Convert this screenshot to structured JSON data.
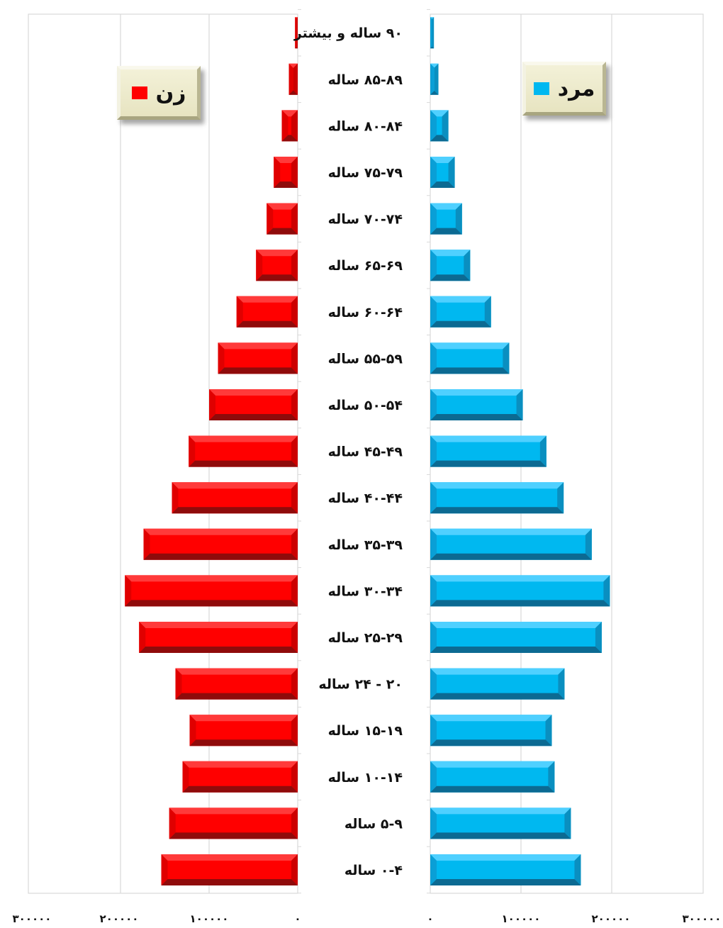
{
  "chart_data": {
    "type": "bar",
    "orientation": "horizontal",
    "style": "population-pyramid",
    "categories": [
      "۰-۴ ساله",
      "۵-۹ ساله",
      "۱۰-۱۴ ساله",
      "۱۵-۱۹ ساله",
      "۲۰ - ۲۴ ساله",
      "۲۵-۲۹ ساله",
      "۳۰-۳۴ ساله",
      "۳۵-۳۹ ساله",
      "۴۰-۴۴ ساله",
      "۴۵-۴۹ ساله",
      "۵۰-۵۴ ساله",
      "۵۵-۵۹ ساله",
      "۶۰-۶۴ ساله",
      "۶۵-۶۹ ساله",
      "۷۰-۷۴ ساله",
      "۷۵-۷۹ ساله",
      "۸۰-۸۴ ساله",
      "۸۵-۸۹ ساله",
      "۹۰ ساله و بیشتر"
    ],
    "series": [
      {
        "name": "زن",
        "side": "left",
        "color": "#ff0000",
        "values": [
          154000,
          145000,
          130000,
          122000,
          138000,
          179000,
          195000,
          174000,
          142000,
          123000,
          100000,
          90000,
          69000,
          47000,
          35000,
          27000,
          18000,
          10000,
          3000
        ]
      },
      {
        "name": "مرد",
        "side": "right",
        "color": "#00b8f0",
        "values": [
          166000,
          155000,
          137000,
          134000,
          148000,
          189000,
          198000,
          178000,
          147000,
          128000,
          102000,
          87000,
          67000,
          44000,
          35000,
          27000,
          20000,
          9000,
          4000
        ]
      }
    ],
    "xlim": [
      0,
      300000
    ],
    "left_ticks": [
      "۳۰۰۰۰۰",
      "۲۰۰۰۰۰",
      "۱۰۰۰۰۰",
      "۰"
    ],
    "right_ticks": [
      "۰",
      "۱۰۰۰۰۰",
      "۲۰۰۰۰۰",
      "۳۰۰۰۰۰"
    ],
    "grid": true,
    "legend": [
      {
        "label": "زن",
        "color": "#ff0000",
        "position": "top-left"
      },
      {
        "label": "مرد",
        "color": "#00b8f0",
        "position": "top-right"
      }
    ]
  }
}
